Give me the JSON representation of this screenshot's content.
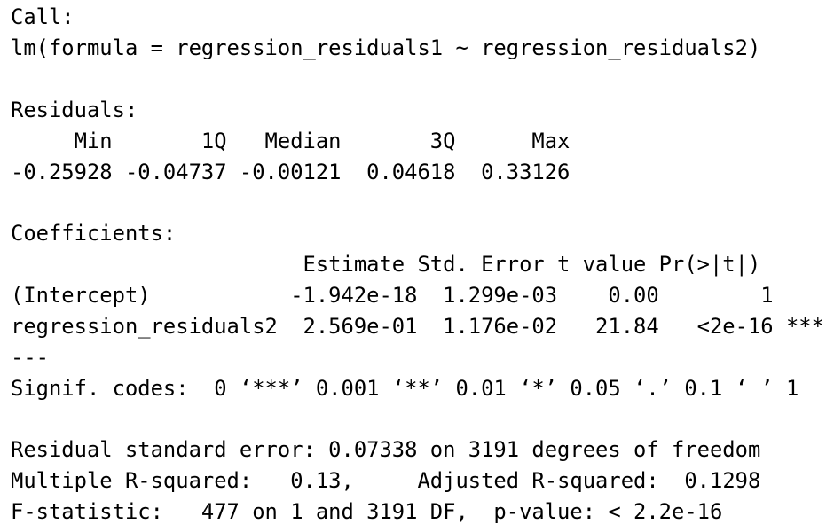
{
  "call": {
    "heading": "Call:",
    "formula": "lm(formula = regression_residuals1 ~ regression_residuals2)"
  },
  "residuals": {
    "heading": "Residuals:",
    "header_row": "     Min       1Q   Median       3Q      Max ",
    "values_row": "-0.25928 -0.04737 -0.00121  0.04618  0.33126 ",
    "columns": [
      "Min",
      "1Q",
      "Median",
      "3Q",
      "Max"
    ],
    "values": [
      -0.25928,
      -0.04737,
      -0.00121,
      0.04618,
      0.33126
    ]
  },
  "coefficients": {
    "heading": "Coefficients:",
    "header_row": "                       Estimate Std. Error t value Pr(>|t|)    ",
    "rows": [
      "(Intercept)           -1.942e-18  1.299e-03    0.00        1    ",
      "regression_residuals2  2.569e-01  1.176e-02   21.84   <2e-16 ***"
    ],
    "separator": "---",
    "signif_codes": "Signif. codes:  0 ‘***’ 0.001 ‘**’ 0.01 ‘*’ 0.05 ‘.’ 0.1 ‘ ’ 1",
    "columns": [
      "Estimate",
      "Std. Error",
      "t value",
      "Pr(>|t|)"
    ],
    "table": [
      {
        "term": "(Intercept)",
        "estimate": "-1.942e-18",
        "std_error": "1.299e-03",
        "t_value": "0.00",
        "p_value": "1",
        "signif": ""
      },
      {
        "term": "regression_residuals2",
        "estimate": "2.569e-01",
        "std_error": "1.176e-02",
        "t_value": "21.84",
        "p_value": "<2e-16",
        "signif": "***"
      }
    ]
  },
  "summary": {
    "residual_se": "Residual standard error: 0.07338 on 3191 degrees of freedom",
    "r_squared": "Multiple R-squared:   0.13,\tAdjusted R-squared:  0.1298 ",
    "f_statistic": "F-statistic:   477 on 1 and 3191 DF,  p-value: < 2.2e-16"
  },
  "colors": {
    "background": "#ffffff",
    "text": "#000000"
  }
}
